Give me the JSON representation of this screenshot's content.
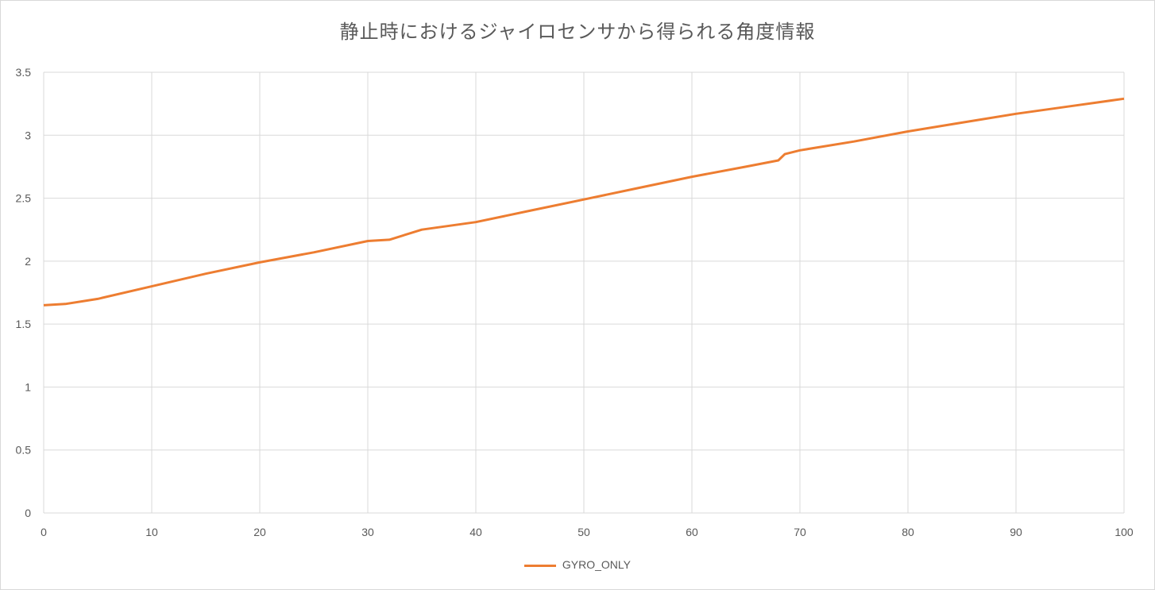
{
  "chart_data": {
    "type": "line",
    "title": "静止時におけるジャイロセンサから得られる角度情報",
    "xlabel": "",
    "ylabel": "",
    "xlim": [
      0,
      100
    ],
    "ylim": [
      0,
      3.5
    ],
    "x_ticks": [
      0,
      10,
      20,
      30,
      40,
      50,
      60,
      70,
      80,
      90,
      100
    ],
    "y_ticks": [
      0,
      0.5,
      1,
      1.5,
      2,
      2.5,
      3,
      3.5
    ],
    "x_tick_labels": [
      "0",
      "10",
      "20",
      "30",
      "40",
      "50",
      "60",
      "70",
      "80",
      "90",
      "100"
    ],
    "y_tick_labels": [
      "0",
      "0.5",
      "1",
      "1.5",
      "2",
      "2.5",
      "3",
      "3.5"
    ],
    "grid": true,
    "legend_position": "bottom",
    "series": [
      {
        "name": "GYRO_ONLY",
        "color": "#ed7d31",
        "x": [
          0,
          2,
          5,
          10,
          15,
          20,
          25,
          30,
          32,
          35,
          40,
          45,
          50,
          55,
          60,
          65,
          68,
          68.6,
          70,
          75,
          80,
          85,
          90,
          95,
          100
        ],
        "y": [
          1.65,
          1.66,
          1.7,
          1.8,
          1.9,
          1.99,
          2.07,
          2.16,
          2.17,
          2.25,
          2.31,
          2.4,
          2.49,
          2.58,
          2.67,
          2.75,
          2.8,
          2.85,
          2.88,
          2.95,
          3.03,
          3.1,
          3.17,
          3.23,
          3.29
        ]
      }
    ]
  }
}
